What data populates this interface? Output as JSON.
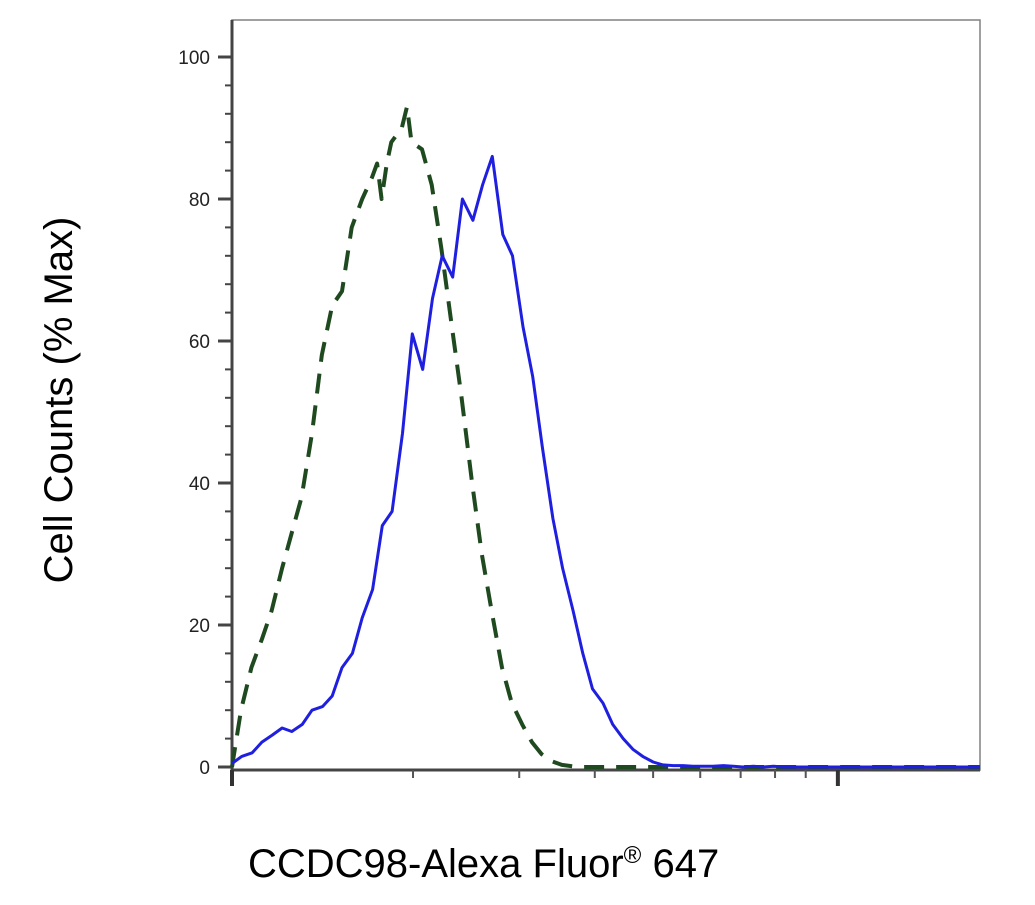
{
  "chart_data": {
    "type": "line",
    "title": "",
    "xlabel": "CCDC98-Alexa Fluor",
    "xlabel_superscript": "®",
    "xlabel_suffix": " 647",
    "ylabel": "Cell Counts (% Max)",
    "xlim": [
      0,
      100
    ],
    "ylim": [
      0,
      105
    ],
    "y_ticks": [
      0,
      20,
      40,
      60,
      80,
      100
    ],
    "y_tick_labels": [
      "0",
      "20",
      "40",
      "60",
      "80",
      "100"
    ],
    "grid": false,
    "legend": "none",
    "series": [
      {
        "style": "dashed",
        "color": "#1f4a1f",
        "x": [
          0,
          1.2,
          2.6,
          4.0,
          5.3,
          6.7,
          8.0,
          9.3,
          10.7,
          12.0,
          13.4,
          14.7,
          16.0,
          17.4,
          18.7,
          19.4,
          20.0,
          20.7,
          21.3,
          22.7,
          23.4,
          24.0,
          25.4,
          26.7,
          28.0,
          29.4,
          30.7,
          32.1,
          33.4,
          34.7,
          36.1,
          37.4,
          38.8,
          40.1,
          41.4,
          42.8,
          44.1,
          45.5,
          46.8,
          48.1,
          49.5,
          50.8,
          52.2,
          53.5,
          54.8,
          56.2,
          57.5,
          58.8,
          60.2,
          61.5,
          62.9,
          64.2,
          65.5,
          66.9,
          68.2,
          69.6,
          70.9,
          72.2,
          73.6,
          74.9,
          76.3,
          77.6,
          78.9,
          80.3,
          81.6,
          83.0,
          84.3,
          85.6,
          87.0,
          88.3,
          89.7,
          91.0,
          92.3,
          93.7,
          95.0,
          96.4,
          97.7,
          99.0,
          100
        ],
        "y": [
          0,
          8,
          14,
          18,
          22,
          28,
          33,
          38,
          47,
          58,
          65,
          67,
          76,
          80,
          83,
          85,
          80,
          85,
          88,
          90,
          93,
          88,
          87,
          82,
          73,
          62,
          52,
          40,
          30,
          22,
          14,
          9,
          6,
          3.5,
          1.8,
          0.8,
          0.3,
          0.1,
          0,
          0,
          0,
          0,
          0,
          0,
          0,
          0,
          0,
          0,
          0,
          0,
          0,
          0,
          0,
          0,
          0,
          0,
          0,
          0,
          0,
          0,
          0,
          0,
          0,
          0,
          0,
          0,
          0,
          0,
          0,
          0,
          0,
          0,
          0,
          0,
          0,
          0,
          0,
          0,
          0
        ]
      },
      {
        "style": "solid",
        "color": "#1f1fe0",
        "x": [
          0,
          1.3,
          2.7,
          4.0,
          5.4,
          6.7,
          8.0,
          9.4,
          10.7,
          12.1,
          13.4,
          14.7,
          16.1,
          17.4,
          18.8,
          20.1,
          21.4,
          22.8,
          24.1,
          25.5,
          26.8,
          28.1,
          29.5,
          30.8,
          32.2,
          33.5,
          34.8,
          36.2,
          37.5,
          38.9,
          40.2,
          41.5,
          42.9,
          44.2,
          45.6,
          46.9,
          48.2,
          49.6,
          50.9,
          52.3,
          53.6,
          54.9,
          56.3,
          57.6,
          59.0,
          60.3,
          61.6,
          63.0,
          64.3,
          65.7,
          67.0,
          68.3,
          69.7,
          71.0,
          72.4,
          73.7,
          75.0,
          76.4,
          77.7,
          79.1,
          80.4,
          81.7,
          83.1,
          84.4,
          85.8,
          87.1,
          88.4,
          89.8,
          91.1,
          92.5,
          93.8,
          95.1,
          96.5,
          97.8,
          100
        ],
        "y": [
          0.5,
          1.5,
          2,
          3.5,
          4.5,
          5.5,
          5,
          6,
          8,
          8.5,
          10,
          14,
          16,
          21,
          25,
          34,
          36,
          47,
          61,
          56,
          66,
          72,
          69,
          80,
          77,
          82,
          86,
          75,
          72,
          62,
          55,
          45,
          35,
          28,
          22,
          16,
          11,
          9,
          6,
          4,
          2.5,
          1.5,
          0.7,
          0.3,
          0.2,
          0.2,
          0.1,
          0.1,
          0.1,
          0.2,
          0.1,
          0,
          0.1,
          0,
          0.1,
          0,
          0,
          0,
          0,
          0,
          0,
          0,
          0,
          0,
          0,
          0,
          0,
          0,
          0,
          0,
          0,
          0,
          0,
          0,
          0
        ]
      }
    ]
  }
}
